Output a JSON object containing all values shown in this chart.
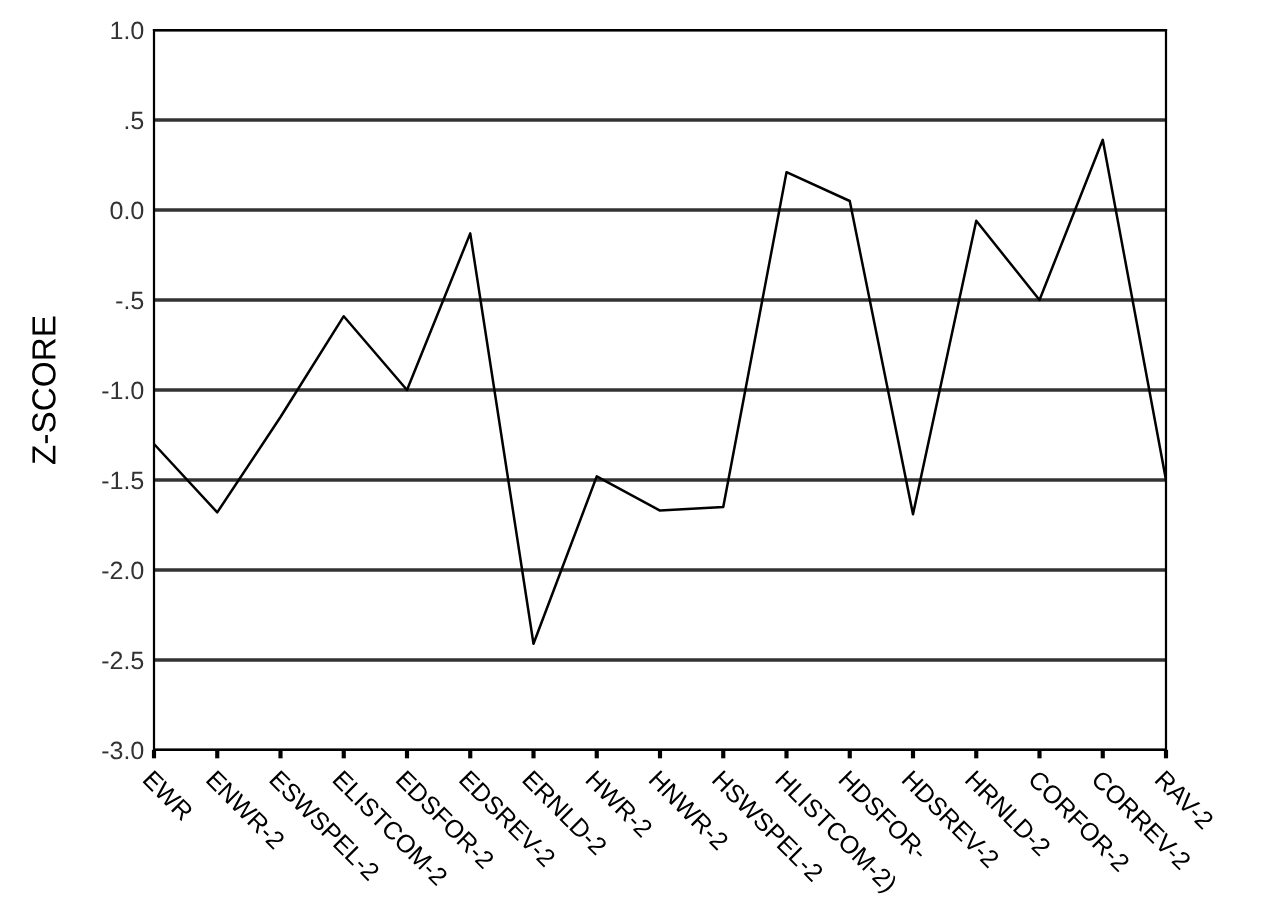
{
  "chart_data": {
    "type": "line",
    "ylabel": "Z-SCORE",
    "categories": [
      "EWR",
      "ENWR-2",
      "ESWSPEL-2",
      "ELISTCOM-2",
      "EDSFOR-2",
      "EDSREV-2",
      "ERNLD-2",
      "HWR-2",
      "HNWR-2",
      "HSWSPEL-2",
      "HLISTCOM-2)",
      "HDSFOR-",
      "HDSREV-2",
      "HRNLD-2",
      "CORFOR-2",
      "CORREV-2",
      "RAV-2"
    ],
    "values": [
      -1.3,
      -1.68,
      -1.15,
      -0.59,
      -1.0,
      -0.13,
      -2.41,
      -1.48,
      -1.67,
      -1.65,
      0.21,
      0.05,
      -1.69,
      -0.06,
      -0.5,
      0.39,
      -1.5
    ],
    "color": "#000000",
    "ylim": [
      -3.0,
      1.0
    ],
    "yticks": [
      {
        "value": -3.0,
        "label": "-3.0"
      },
      {
        "value": -2.5,
        "label": "-2.5"
      },
      {
        "value": -2.0,
        "label": "-2.0"
      },
      {
        "value": -1.5,
        "label": "-1.5"
      },
      {
        "value": -1.0,
        "label": "-1.0"
      },
      {
        "value": -0.5,
        "label": "-.5"
      },
      {
        "value": 0.0,
        "label": "0.0"
      },
      {
        "value": 0.5,
        "label": ".5"
      },
      {
        "value": 1.0,
        "label": "1.0"
      }
    ],
    "grid": "y",
    "marker": "none",
    "line_style": "solid"
  }
}
